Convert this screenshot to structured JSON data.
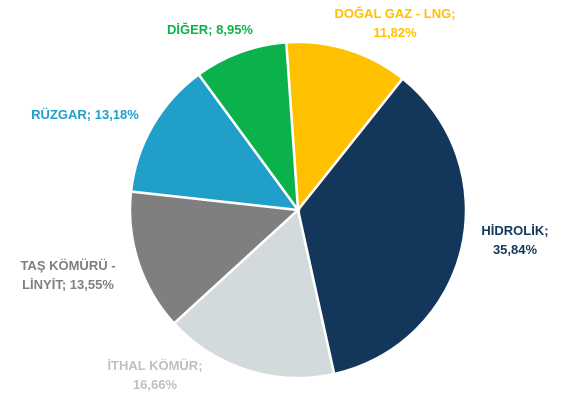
{
  "chart_data": {
    "type": "pie",
    "categories": [
      "DOĞAL GAZ - LNG",
      "HİDROLİK",
      "İTHAL KÖMÜR",
      "TAŞ KÖMÜRÜ - LİNYİT",
      "RÜZGAR",
      "DİĞER"
    ],
    "values": [
      11.82,
      35.84,
      16.66,
      13.55,
      13.18,
      8.95
    ],
    "value_labels": [
      "11,82%",
      "35,84%",
      "16,66%",
      "13,55%",
      "13,18%",
      "8,95%"
    ],
    "label_separator": "; ",
    "colors": [
      "#FFC000",
      "#13375A",
      "#D3DADB",
      "#7F7F7F",
      "#20A0C8",
      "#0BB14B"
    ],
    "label_colors": [
      "#FFC000",
      "#13375A",
      "#BFBFBF",
      "#7F7F7F",
      "#20A0C8",
      "#0BB14B"
    ]
  }
}
